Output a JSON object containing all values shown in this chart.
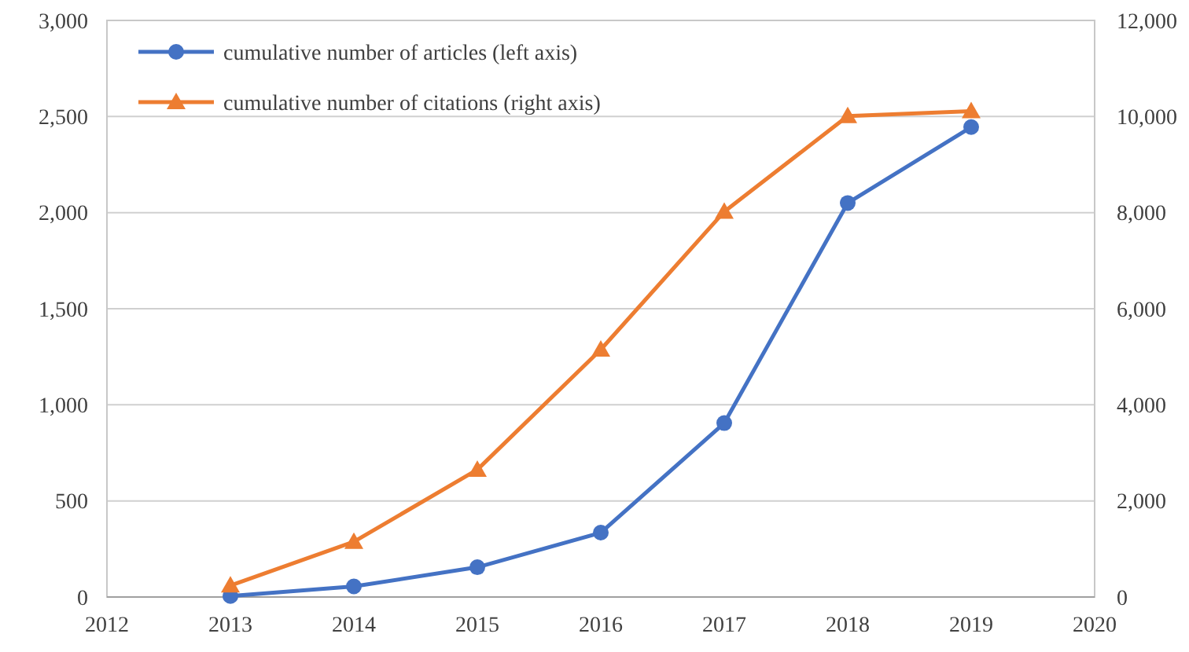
{
  "chart_data": {
    "type": "line",
    "x": [
      2013,
      2014,
      2015,
      2016,
      2017,
      2018,
      2019
    ],
    "series": [
      {
        "name": "cumulative number of articles (left axis)",
        "color": "#4472c4",
        "marker": "circle",
        "values": [
          5,
          55,
          155,
          335,
          905,
          2050,
          2445
        ]
      },
      {
        "name": "cumulative number of citations (right axis)",
        "color": "#ed7d31",
        "marker": "triangle",
        "axis": "y2",
        "values": [
          240,
          1150,
          2650,
          5150,
          8020,
          10010,
          10110
        ]
      }
    ],
    "xlim": [
      2012,
      2020
    ],
    "xticks": [
      2012,
      2013,
      2014,
      2015,
      2016,
      2017,
      2018,
      2019,
      2020
    ],
    "ylim": [
      0,
      3000
    ],
    "yticks": [
      {
        "value": 0,
        "label": "0"
      },
      {
        "value": 500,
        "label": "500"
      },
      {
        "value": 1000,
        "label": "1,000"
      },
      {
        "value": 1500,
        "label": "1,500"
      },
      {
        "value": 2000,
        "label": "2,000"
      },
      {
        "value": 2500,
        "label": "2,500"
      },
      {
        "value": 3000,
        "label": "3,000"
      }
    ],
    "y2lim": [
      0,
      12000
    ],
    "y2ticks": [
      {
        "value": 0,
        "label": "0"
      },
      {
        "value": 2000,
        "label": "2,000"
      },
      {
        "value": 4000,
        "label": "4,000"
      },
      {
        "value": 6000,
        "label": "6,000"
      },
      {
        "value": 8000,
        "label": "8,000"
      },
      {
        "value": 10000,
        "label": "10,000"
      },
      {
        "value": 12000,
        "label": "12,000"
      }
    ],
    "grid": "y",
    "legend": "top left",
    "line_style": "solid"
  }
}
